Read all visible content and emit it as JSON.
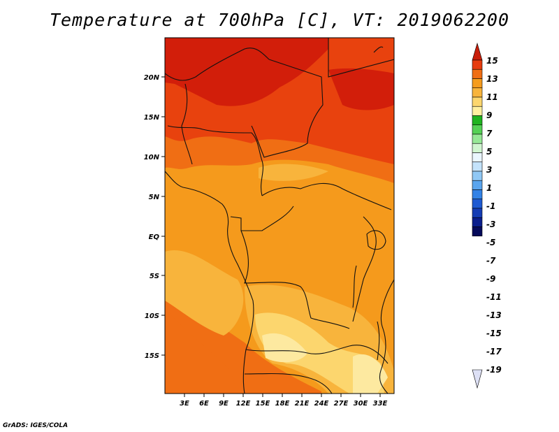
{
  "title": "Temperature at 700hPa [C], VT: 2019062200",
  "credit": "GrADS: IGES/COLA",
  "axes": {
    "x_ticks": [
      "3E",
      "6E",
      "9E",
      "12E",
      "15E",
      "18E",
      "21E",
      "24E",
      "27E",
      "30E",
      "33E"
    ],
    "y_ticks": [
      "20N",
      "15N",
      "10N",
      "5N",
      "EQ",
      "5S",
      "10S",
      "15S"
    ]
  },
  "colorbar": {
    "labels": [
      "15",
      "13",
      "11",
      "9",
      "7",
      "5",
      "3",
      "1",
      "-1",
      "-3",
      "-5",
      "-7",
      "-9",
      "-11",
      "-13",
      "-15",
      "-17",
      "-19"
    ],
    "colors": [
      "#c81e0a",
      "#e63c0f",
      "#f06e14",
      "#f59c1e",
      "#f8b43c",
      "#fcd66e",
      "#fff0a0",
      "#1fb31f",
      "#55d155",
      "#96e896",
      "#d0f5d0",
      "#eaf6ff",
      "#c4e3fb",
      "#90c8f5",
      "#5aa5ee",
      "#3282e6",
      "#1e5ad2",
      "#143cb4",
      "#0a1e8c",
      "#050a5a",
      "#dde0f5"
    ]
  },
  "field_colors": {
    "hot": "#d21e0a",
    "warm": "#e8420e",
    "mild": "#f06e14",
    "medium": "#f59a1c",
    "cool": "#f8b43c",
    "coolest": "#fcd66e",
    "pale": "#fde9a0"
  }
}
